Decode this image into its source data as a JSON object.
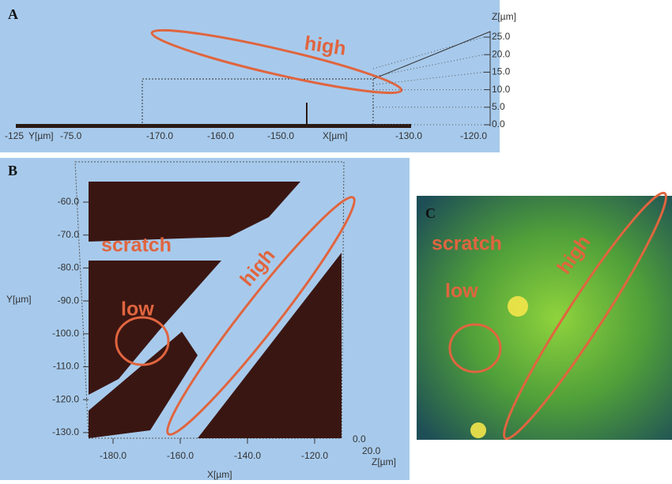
{
  "panel_a": {
    "label": "A",
    "annotation": "high",
    "z_axis_title": "Z[µm]",
    "z_ticks": [
      "25.0",
      "20.0",
      "15.0",
      "10.0",
      "5.0",
      "0.0"
    ],
    "bottom_labels": [
      "-125",
      "Y[µm]",
      "-75.0",
      "-170.0",
      "-160.0",
      "-150.0",
      "X[µm]",
      "-130.0",
      "-120.0"
    ]
  },
  "panel_b": {
    "label": "B",
    "annotations": {
      "scratch": "scratch",
      "high": "high",
      "low": "low"
    },
    "y_axis_title": "Y[µm]",
    "y_ticks": [
      "-60.0",
      "-70.0",
      "-80.0",
      "-90.0",
      "-100.0",
      "-110.0",
      "-120.0",
      "-130.0"
    ],
    "x_axis_title": "X[µm]",
    "x_ticks": [
      "-180.0",
      "-160.0",
      "-140.0",
      "-120.0"
    ],
    "z_ticks": [
      "0.0",
      "20.0"
    ],
    "z_axis_title": "Z[µm]"
  },
  "panel_c": {
    "label": "C",
    "annotations": {
      "scratch": "scratch",
      "low": "low",
      "high": "high"
    }
  }
}
